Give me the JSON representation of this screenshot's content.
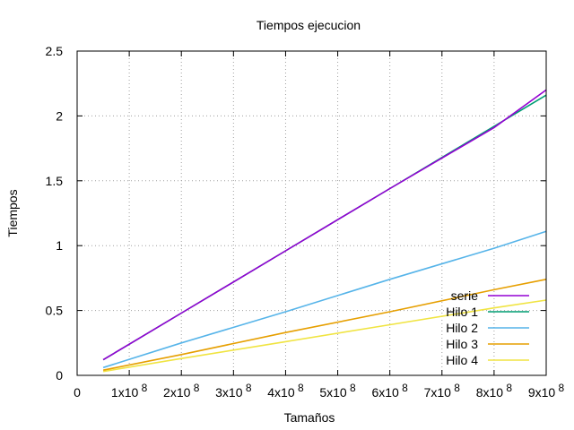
{
  "chart_data": {
    "type": "line",
    "title": "Tiempos ejecucion",
    "xlabel": "Tamaños",
    "ylabel": "Tiempos",
    "xlim": [
      0,
      900000000
    ],
    "ylim": [
      0,
      2.5
    ],
    "grid": true,
    "legend_position": "bottom-right",
    "x_ticks": [
      {
        "value": 0,
        "label": "0",
        "exp": ""
      },
      {
        "value": 100000000,
        "label": "1x10",
        "exp": "8"
      },
      {
        "value": 200000000,
        "label": "2x10",
        "exp": "8"
      },
      {
        "value": 300000000,
        "label": "3x10",
        "exp": "8"
      },
      {
        "value": 400000000,
        "label": "4x10",
        "exp": "8"
      },
      {
        "value": 500000000,
        "label": "5x10",
        "exp": "8"
      },
      {
        "value": 600000000,
        "label": "6x10",
        "exp": "8"
      },
      {
        "value": 700000000,
        "label": "7x10",
        "exp": "8"
      },
      {
        "value": 800000000,
        "label": "8x10",
        "exp": "8"
      },
      {
        "value": 900000000,
        "label": "9x10",
        "exp": "8"
      }
    ],
    "y_ticks": [
      {
        "value": 0,
        "label": "0"
      },
      {
        "value": 0.5,
        "label": "0.5"
      },
      {
        "value": 1,
        "label": "1"
      },
      {
        "value": 1.5,
        "label": "1.5"
      },
      {
        "value": 2,
        "label": "2"
      },
      {
        "value": 2.5,
        "label": "2.5"
      }
    ],
    "x": [
      50000000,
      200000000,
      400000000,
      600000000,
      800000000,
      900000000
    ],
    "series": [
      {
        "name": "serie",
        "color": "#9400d3",
        "values": [
          0.12,
          0.48,
          0.96,
          1.44,
          1.91,
          2.2
        ]
      },
      {
        "name": "Hilo 1",
        "color": "#009e73",
        "values": [
          0.12,
          0.48,
          0.96,
          1.44,
          1.92,
          2.16
        ]
      },
      {
        "name": "Hilo 2",
        "color": "#56b4e9",
        "values": [
          0.06,
          0.25,
          0.49,
          0.74,
          0.98,
          1.11
        ]
      },
      {
        "name": "Hilo 3",
        "color": "#e69f00",
        "values": [
          0.04,
          0.16,
          0.33,
          0.49,
          0.66,
          0.74
        ]
      },
      {
        "name": "Hilo 4",
        "color": "#f0e442",
        "values": [
          0.03,
          0.13,
          0.26,
          0.39,
          0.52,
          0.58
        ]
      }
    ]
  }
}
